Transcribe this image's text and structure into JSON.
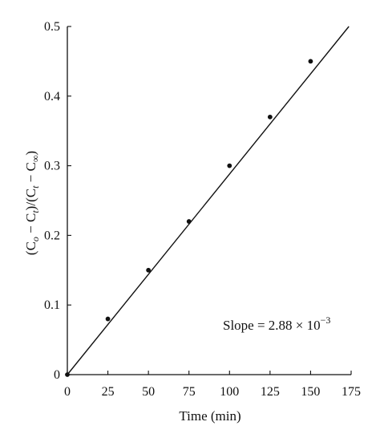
{
  "chart_data": {
    "type": "scatter",
    "title": "",
    "xlabel": "Time (min)",
    "ylabel": "(C_o − C_t)/(C_t − C_∞)",
    "xlim": [
      0,
      175
    ],
    "ylim": [
      0,
      0.5
    ],
    "x_ticks": [
      0,
      25,
      50,
      75,
      100,
      125,
      150,
      175
    ],
    "x_tick_labels": [
      "0",
      "25",
      "50",
      "75",
      "100",
      "125",
      "150",
      "175"
    ],
    "y_ticks": [
      0,
      0.1,
      0.2,
      0.3,
      0.4,
      0.5
    ],
    "y_tick_labels": [
      "0",
      "0.1",
      "0.2",
      "0.3",
      "0.4",
      "0.5"
    ],
    "grid": false,
    "series": [
      {
        "x": [
          0,
          25,
          50,
          75,
          100,
          125,
          150
        ],
        "y": [
          0,
          0.08,
          0.15,
          0.22,
          0.3,
          0.37,
          0.45
        ],
        "color": "#111111"
      }
    ],
    "fit_line": {
      "slope": 0.00288,
      "intercept": 0,
      "color": "#111111"
    },
    "annotation": {
      "text": "Slope = 2.88 × 10",
      "exponent": "−3"
    }
  }
}
